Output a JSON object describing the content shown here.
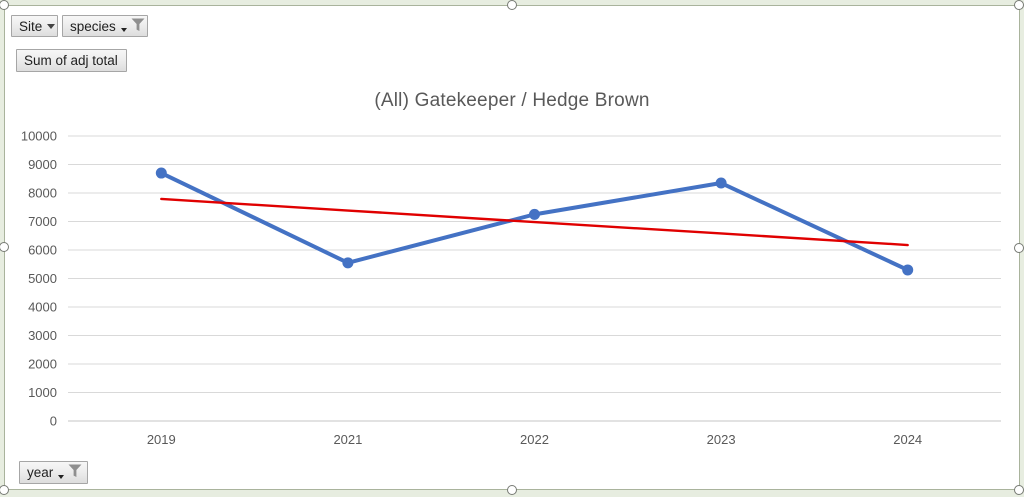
{
  "field_buttons": {
    "site": {
      "label": "Site"
    },
    "species": {
      "label": "species"
    },
    "values": {
      "label": "Sum of adj total"
    },
    "year": {
      "label": "year"
    }
  },
  "chart_data": {
    "type": "line",
    "title": "(All) Gatekeeper / Hedge Brown",
    "categories": [
      "2019",
      "2021",
      "2022",
      "2023",
      "2024"
    ],
    "series": [
      {
        "name": "Sum of adj total",
        "role": "data",
        "color": "#4472C4",
        "width": 4,
        "markers": true,
        "values": [
          8700,
          5550,
          7250,
          8350,
          5300
        ]
      },
      {
        "name": "Linear trendline",
        "role": "trendline",
        "color": "#E00000",
        "width": 2.4,
        "markers": false,
        "values": [
          7790,
          7385,
          6980,
          6580,
          6175
        ]
      }
    ],
    "ylim": [
      0,
      10000
    ],
    "ytick_step": 1000,
    "grid": true,
    "legend": "none",
    "gridline_color": "#d9d9d9",
    "axis_line_color": "#c6c6c6",
    "axis_text_color": "#595959"
  }
}
